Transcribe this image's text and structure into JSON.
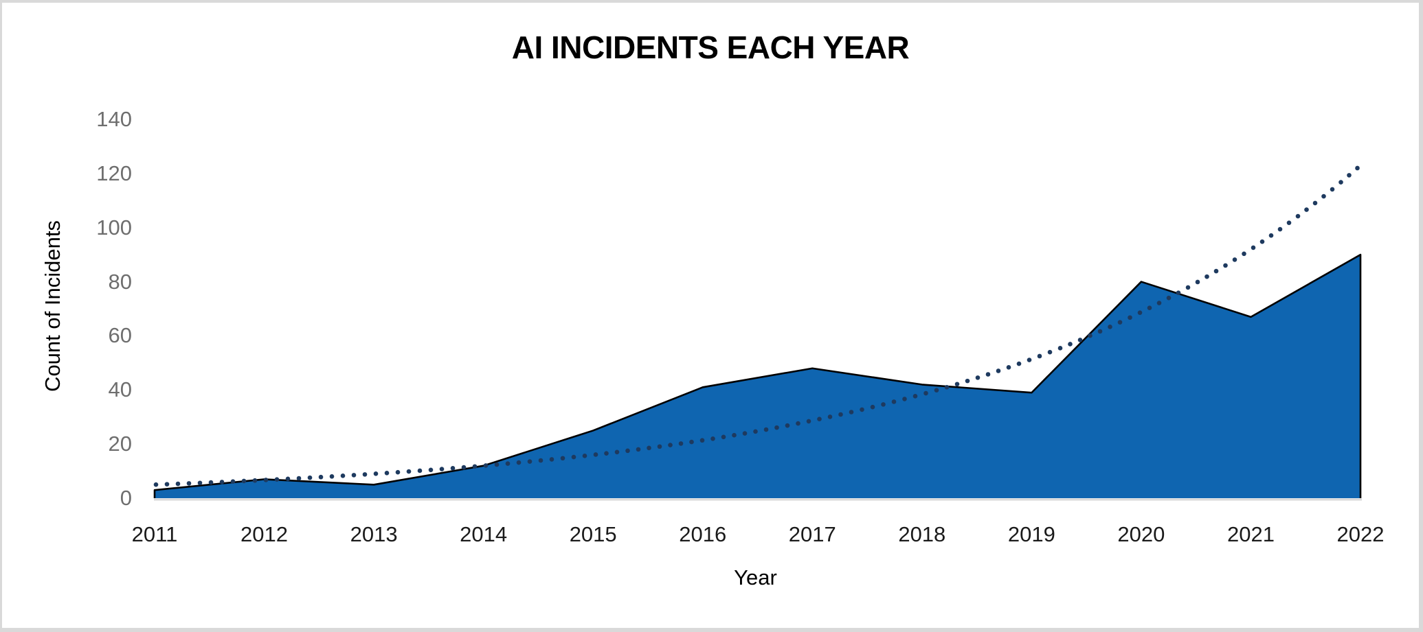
{
  "frame": {
    "background": "#FFFFFF",
    "border_color": "#D9D9D9"
  },
  "chart_data": {
    "type": "area",
    "title": "AI INCIDENTS EACH YEAR",
    "xlabel": "Year",
    "ylabel": "Count of Incidents",
    "categories": [
      "2011",
      "2012",
      "2013",
      "2014",
      "2015",
      "2016",
      "2017",
      "2018",
      "2019",
      "2020",
      "2021",
      "2022"
    ],
    "series": [
      {
        "name": "Count of Incidents",
        "kind": "filled-area",
        "values": [
          3,
          7,
          5,
          12,
          25,
          41,
          48,
          42,
          39,
          80,
          67,
          90
        ],
        "fill_color": "#0F65B0",
        "outline_color": "#000000"
      },
      {
        "name": "Exponential trendline",
        "kind": "dotted-trendline",
        "values": [
          5.0,
          6.7,
          9.0,
          12.0,
          16.0,
          21.4,
          28.7,
          38.4,
          51.4,
          68.8,
          92.0,
          123.0
        ],
        "dot_color": "#1E3A5F"
      }
    ],
    "ylim": [
      0,
      140
    ],
    "yticks": [
      "0",
      "20",
      "40",
      "60",
      "80",
      "100",
      "120",
      "140"
    ],
    "grid": false,
    "legend_position": "none",
    "axis_line_color": "#D9D9D9",
    "ytick_color": "#6E6E6E",
    "xtick_color": "#1A1A1A"
  }
}
